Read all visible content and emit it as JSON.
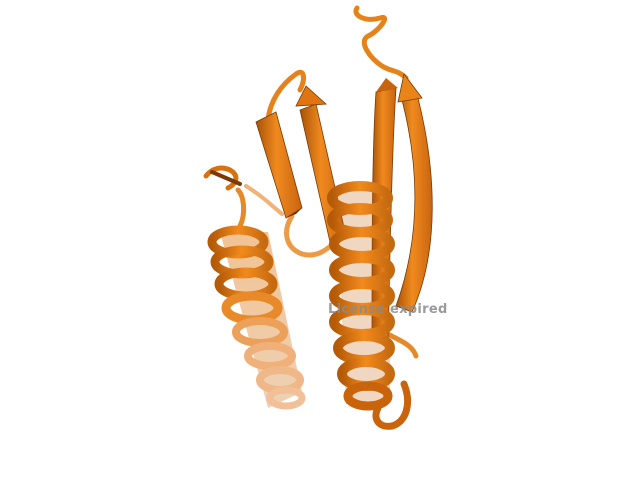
{
  "viewer": {
    "watermark_text": "License expired",
    "background_color": "#ffffff"
  },
  "structure": {
    "representation": "cartoon",
    "colors": {
      "base": "#e8780a",
      "light": "#f59a3a",
      "dark": "#9a4a05",
      "shadow": "#6e3503"
    }
  }
}
